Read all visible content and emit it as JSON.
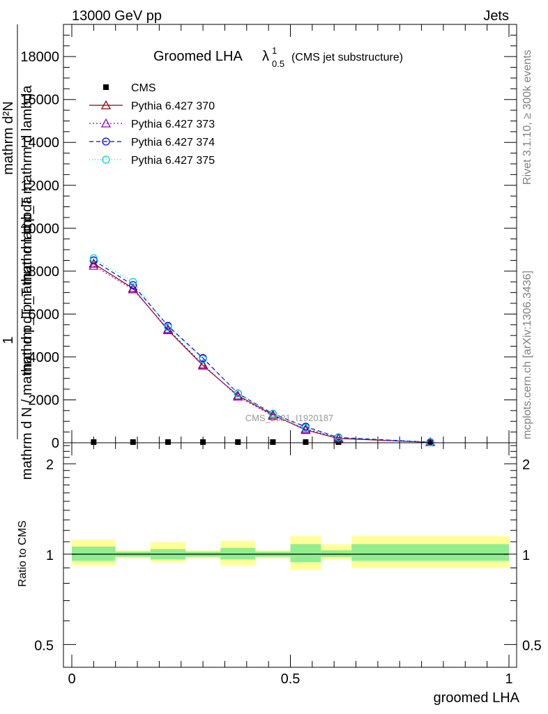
{
  "header": {
    "energy": "13000 GeV pp",
    "category": "Jets",
    "plot_title": "Groomed LHA",
    "plot_title_symbol": "λ",
    "plot_title_sup": "1",
    "plot_title_sub": "0.5",
    "plot_title_note": "(CMS jet substructure)",
    "side_rivet": "Rivet 3.1.10, ≥ 300k events",
    "side_mcplots": "mcplots.cern.ch [arXiv:1306.3436]",
    "watermark": "CMS_2021_I1920187"
  },
  "chart_data": [
    {
      "type": "line",
      "panel": "main",
      "ylabel_num": "1",
      "ylabel_den": "mathrm d N / mathrm d p_T mathrm d lambda",
      "ylabel_lines": [
        "mathrm d²N",
        "mathrm d p_T mathrm d p_T mathrm d lambda",
        "mathrm d N / mathrm d p_T mathrm d lambda"
      ],
      "xlim": [
        0,
        1
      ],
      "ylim": [
        0,
        19500
      ],
      "yticks": [
        0,
        2000,
        4000,
        6000,
        8000,
        10000,
        12000,
        14000,
        16000,
        18000
      ],
      "ytick_labels": [
        "0",
        "2000",
        "4000",
        "6000",
        "8000",
        "10000",
        "12000",
        "14000",
        "16000",
        "18000"
      ],
      "legend_position": "top-left",
      "series": [
        {
          "name": "CMS",
          "color": "#000000",
          "marker": "square",
          "x": [
            0.05,
            0.14,
            0.22,
            0.3,
            0.38,
            0.46,
            0.535,
            0.61,
            0.82
          ],
          "y": [
            0,
            0,
            0,
            0,
            0,
            0,
            0,
            0,
            0
          ]
        },
        {
          "name": "Pythia 6.427 370",
          "color": "#8b0000",
          "marker": "triangle",
          "dash": "",
          "x": [
            0.05,
            0.14,
            0.22,
            0.3,
            0.38,
            0.46,
            0.535,
            0.61,
            0.82
          ],
          "y": [
            8350,
            7200,
            5250,
            3600,
            2200,
            1300,
            600,
            200,
            20
          ]
        },
        {
          "name": "Pythia 6.427 373",
          "color": "#9400d3",
          "marker": "triangle",
          "dash": "2,3",
          "x": [
            0.05,
            0.14,
            0.22,
            0.3,
            0.38,
            0.46,
            0.535,
            0.61,
            0.82
          ],
          "y": [
            8250,
            7150,
            5300,
            3650,
            2150,
            1250,
            650,
            220,
            20
          ]
        },
        {
          "name": "Pythia 6.427 374",
          "color": "#0000ee",
          "marker": "circle",
          "dash": "6,4",
          "x": [
            0.05,
            0.14,
            0.22,
            0.3,
            0.38,
            0.46,
            0.535,
            0.61,
            0.82
          ],
          "y": [
            8500,
            7350,
            5450,
            3950,
            2300,
            1350,
            750,
            250,
            25
          ]
        },
        {
          "name": "Pythia 6.427 375",
          "color": "#00d2c8",
          "marker": "circle",
          "dash": "1,3",
          "x": [
            0.05,
            0.14,
            0.22,
            0.3,
            0.38,
            0.46,
            0.535,
            0.61,
            0.82
          ],
          "y": [
            8600,
            7500,
            5400,
            3900,
            2300,
            1350,
            700,
            260,
            25
          ]
        }
      ]
    },
    {
      "type": "area",
      "panel": "ratio",
      "ylabel": "Ratio to CMS",
      "xlabel": "groomed LHA",
      "xlim": [
        0,
        1
      ],
      "ylim": [
        0.42,
        2.35
      ],
      "log_y": true,
      "yticks": [
        0.5,
        1,
        2
      ],
      "ytick_labels": [
        "0.5",
        "1",
        "2"
      ],
      "xticks": [
        0,
        0.5,
        1
      ],
      "xtick_labels": [
        "0",
        "0.5",
        "1"
      ],
      "bin_edges": [
        0,
        0.1,
        0.18,
        0.26,
        0.34,
        0.42,
        0.5,
        0.57,
        0.64,
        1.0
      ],
      "data_bins": [
        0,
        1,
        2,
        3,
        4,
        5,
        6,
        7,
        8
      ],
      "inner_band": [
        [
          0.95,
          1.06
        ],
        [
          0.98,
          1.02
        ],
        [
          0.96,
          1.04
        ],
        [
          0.98,
          1.02
        ],
        [
          0.96,
          1.05
        ],
        [
          0.98,
          1.02
        ],
        [
          0.94,
          1.08
        ],
        [
          0.98,
          1.03
        ],
        [
          0.95,
          1.08
        ]
      ],
      "outer_band": [
        [
          0.92,
          1.12
        ],
        [
          0.97,
          1.03
        ],
        [
          0.94,
          1.1
        ],
        [
          0.97,
          1.03
        ],
        [
          0.92,
          1.11
        ],
        [
          0.97,
          1.03
        ],
        [
          0.89,
          1.15
        ],
        [
          0.96,
          1.08
        ],
        [
          0.9,
          1.15
        ]
      ],
      "band_colors": {
        "inner": "#90ee90",
        "outer": "#ffff99"
      },
      "reference_line": 1
    }
  ]
}
